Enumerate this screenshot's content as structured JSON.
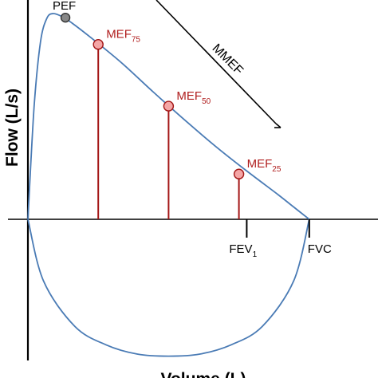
{
  "chart_data": {
    "type": "line",
    "title": "",
    "xlabel": "Volume (L)",
    "ylabel": "Flow (L/s)",
    "grid": false,
    "curve_points": {
      "expiratory": [
        {
          "x": 0,
          "y": 0
        },
        {
          "x": 0.1,
          "y": 0.55
        },
        {
          "x": 0.2,
          "y": 0.86
        },
        {
          "x": 0.3,
          "y": 0.975
        },
        {
          "x": 0.4,
          "y": 1.0
        },
        {
          "x": 0.55,
          "y": 0.985
        },
        {
          "x": 0.7,
          "y": 0.955
        },
        {
          "x": 1.0,
          "y": 0.885
        },
        {
          "x": 1.5,
          "y": 0.76
        },
        {
          "x": 2.0,
          "y": 0.62
        },
        {
          "x": 2.5,
          "y": 0.485
        },
        {
          "x": 3.0,
          "y": 0.355
        },
        {
          "x": 3.5,
          "y": 0.235
        },
        {
          "x": 4.0,
          "y": 0.12
        },
        {
          "x": 4.25,
          "y": 0.06
        },
        {
          "x": 4.5,
          "y": 0.0
        }
      ],
      "inspiratory": [
        {
          "x": 0,
          "y": 0
        },
        {
          "x": 0.25,
          "y": -0.3
        },
        {
          "x": 0.75,
          "y": -0.52
        },
        {
          "x": 1.25,
          "y": -0.61
        },
        {
          "x": 1.75,
          "y": -0.655
        },
        {
          "x": 2.25,
          "y": -0.665
        },
        {
          "x": 2.75,
          "y": -0.655
        },
        {
          "x": 3.25,
          "y": -0.61
        },
        {
          "x": 3.75,
          "y": -0.52
        },
        {
          "x": 4.25,
          "y": -0.3
        },
        {
          "x": 4.5,
          "y": 0.0
        }
      ]
    },
    "points": [
      {
        "id": "pef",
        "label": "PEF",
        "sub": "",
        "x": 0.6,
        "y": 0.98,
        "color": "#888888",
        "text_color": "#000000"
      },
      {
        "id": "mef75",
        "label": "MEF",
        "sub": "75",
        "x": 1.125,
        "y": 0.85,
        "color": "#f4a6a6",
        "text_color": "#b01e1e"
      },
      {
        "id": "mef50",
        "label": "MEF",
        "sub": "50",
        "x": 2.25,
        "y": 0.55,
        "color": "#f4a6a6",
        "text_color": "#b01e1e"
      },
      {
        "id": "mef25",
        "label": "MEF",
        "sub": "25",
        "x": 3.375,
        "y": 0.22,
        "color": "#f4a6a6",
        "text_color": "#b01e1e"
      }
    ],
    "markers": [
      {
        "id": "fev1",
        "label": "FEV",
        "sub": "1",
        "x": 3.5
      },
      {
        "id": "fvc",
        "label": "FVC",
        "sub": "",
        "x": 4.5
      }
    ],
    "annotation": {
      "label": "MMEF"
    },
    "colors": {
      "curve": "#4a7bb5",
      "vline": "#a31515",
      "axis": "#000000"
    }
  }
}
